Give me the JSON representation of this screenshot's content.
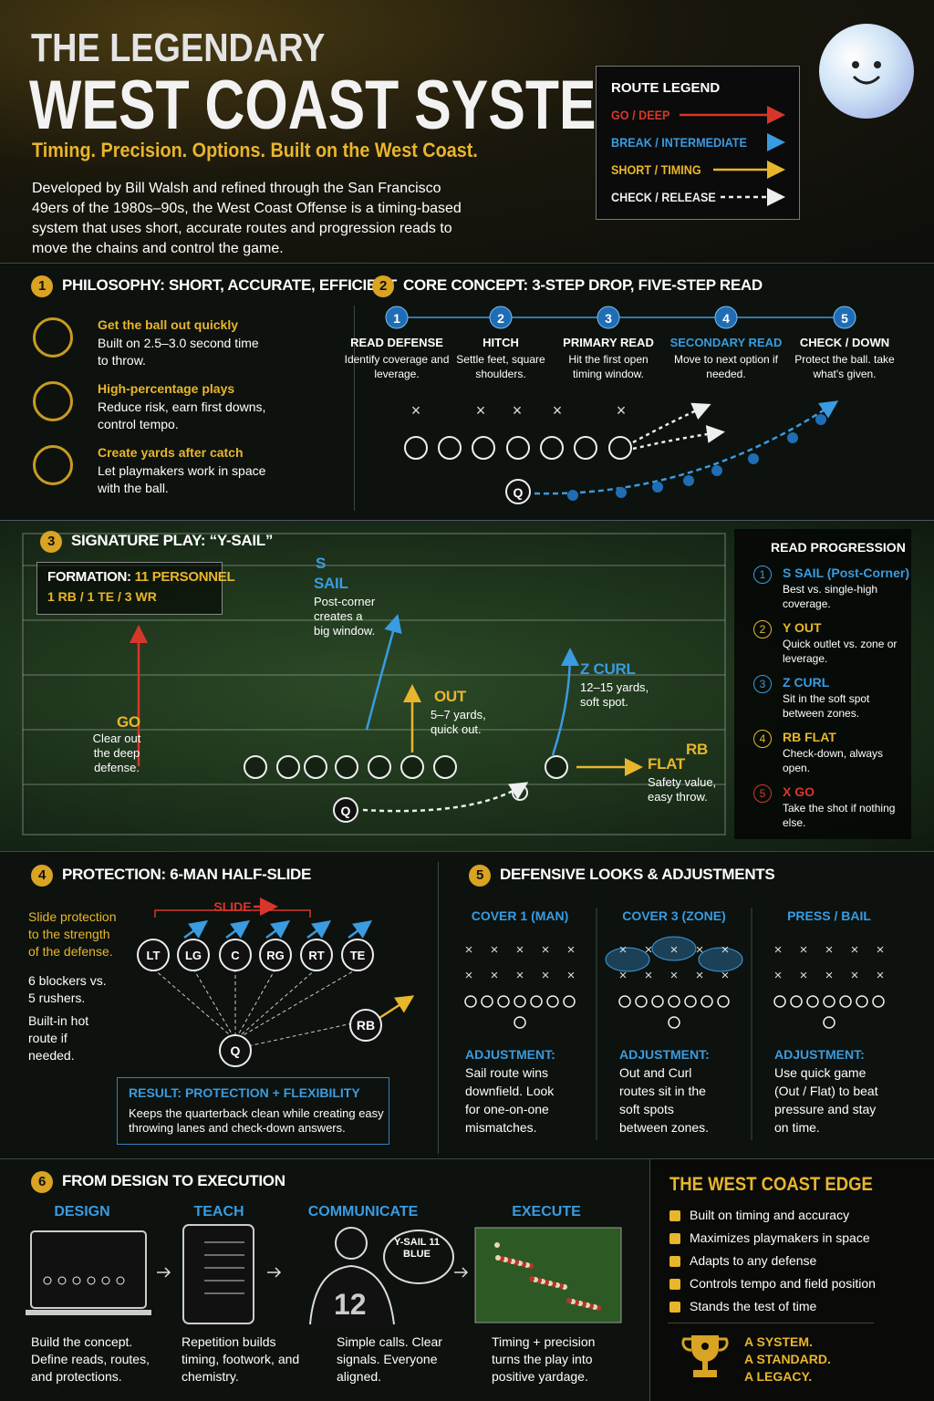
{
  "header": {
    "title_line1": "THE LEGENDARY",
    "title_line2": "WEST COAST SYSTEM",
    "tagline": "Timing. Precision. Options. Built on the West Coast.",
    "intro": "Developed by Bill Walsh and refined through the San Francisco 49ers of the 1980s–90s, the West Coast Offense is a timing-based system that uses short, accurate routes and progression reads to move the chains and control the game."
  },
  "legend": {
    "title": "ROUTE LEGEND",
    "items": [
      "GO / DEEP",
      "BREAK / INTERMEDIATE",
      "SHORT / TIMING",
      "CHECK / RELEASE"
    ]
  },
  "philosophy": {
    "number": "1",
    "title": "PHILOSOPHY: SHORT, ACCURATE, EFFICIENT",
    "items": [
      {
        "heading": "Get the ball out quickly",
        "text": "Built on 2.5–3.0 second time to throw."
      },
      {
        "heading": "High-percentage plays",
        "text": "Reduce risk, earn first downs, control tempo."
      },
      {
        "heading": "Create yards after catch",
        "text": "Let playmakers work in space with the ball."
      }
    ]
  },
  "core": {
    "number": "2",
    "title": "CORE CONCEPT: 3-STEP DROP, FIVE-STEP READ",
    "steps": [
      {
        "n": "1",
        "title": "READ DEFENSE",
        "text": "Identify coverage and leverage."
      },
      {
        "n": "2",
        "title": "HITCH",
        "text": "Settle feet, square shoulders."
      },
      {
        "n": "3",
        "title": "PRIMARY READ",
        "text": "Hit the first open timing window."
      },
      {
        "n": "4",
        "title": "SECONDARY READ",
        "text": "Move to next option if needed."
      },
      {
        "n": "5",
        "title": "CHECK / DOWN",
        "text": "Protect the ball. take what's given."
      }
    ],
    "qb": "Q"
  },
  "play": {
    "number": "3",
    "title": "SIGNATURE PLAY: “Y-SAIL”",
    "formation_label": "FORMATION:",
    "formation": "11 PERSONNEL",
    "personnel": "1 RB / 1 TE / 3 WR",
    "routes": {
      "sail_tag": "S",
      "sail": "SAIL",
      "sail_text": "Post-corner creates a big window.",
      "go": "GO",
      "go_text": "Clear out the deep defense.",
      "out": "OUT",
      "out_text": "5–7 yards, quick out.",
      "curl": "Z CURL",
      "curl_text": "12–15 yards, soft spot.",
      "rb": "RB",
      "flat": "FLAT",
      "flat_text": "Safety value, easy throw."
    },
    "qb": "Q"
  },
  "progression": {
    "title": "READ PROGRESSION",
    "items": [
      {
        "n": "1",
        "name": "S SAIL (Post-Corner)",
        "text": "Best vs. single-high coverage."
      },
      {
        "n": "2",
        "name": "Y OUT",
        "text": "Quick outlet vs. zone or leverage."
      },
      {
        "n": "3",
        "name": "Z CURL",
        "text": "Sit in the soft spot between zones."
      },
      {
        "n": "4",
        "name": "RB FLAT",
        "text": "Check-down, always open."
      },
      {
        "n": "5",
        "name": "X GO",
        "text": "Take the shot if nothing else."
      }
    ]
  },
  "protection": {
    "number": "4",
    "title": "PROTECTION: 6-MAN HALF-SLIDE",
    "notes": [
      "Slide protection to the strength of the defense.",
      "6 blockers vs. 5 rushers.",
      "Built-in hot route if needed."
    ],
    "slide": "SLIDE",
    "linemen": [
      "LT",
      "LG",
      "C",
      "RG",
      "RT",
      "TE"
    ],
    "qb": "Q",
    "rb": "RB",
    "result_title": "RESULT: PROTECTION + FLEXIBILITY",
    "result_text": "Keeps the quarterback clean while creating easy throwing lanes and check-down answers."
  },
  "defense": {
    "number": "5",
    "title": "DEFENSIVE LOOKS & ADJUSTMENTS",
    "looks": [
      {
        "title": "COVER 1 (MAN)",
        "label": "ADJUSTMENT:",
        "text": "Sail route wins downfield. Look for one-on-one mismatches."
      },
      {
        "title": "COVER 3 (ZONE)",
        "label": "ADJUSTMENT:",
        "text": "Out and Curl routes sit in the soft spots between zones."
      },
      {
        "title": "PRESS / BAIL",
        "label": "ADJUSTMENT:",
        "text": "Use quick game (Out / Flat) to beat pressure and stay on time."
      }
    ]
  },
  "execution": {
    "number": "6",
    "title": "FROM DESIGN TO EXECUTION",
    "stages": [
      {
        "title": "DESIGN",
        "text": "Build the concept. Define reads, routes, and protections."
      },
      {
        "title": "TEACH",
        "text": "Repetition builds timing, footwork, and chemistry."
      },
      {
        "title": "COMMUNICATE",
        "text": "Simple calls. Clear signals. Everyone aligned."
      },
      {
        "title": "EXECUTE",
        "text": "Timing + precision turns the play into positive yardage."
      }
    ],
    "call": "Y-SAIL 11 BLUE",
    "jersey": "12"
  },
  "edge": {
    "title": "THE WEST COAST EDGE",
    "items": [
      "Built on timing and accuracy",
      "Maximizes playmakers in space",
      "Adapts to any defense",
      "Controls tempo and field position",
      "Stands the test of time"
    ],
    "motto": [
      "A SYSTEM.",
      "A STANDARD.",
      "A LEGACY."
    ]
  }
}
